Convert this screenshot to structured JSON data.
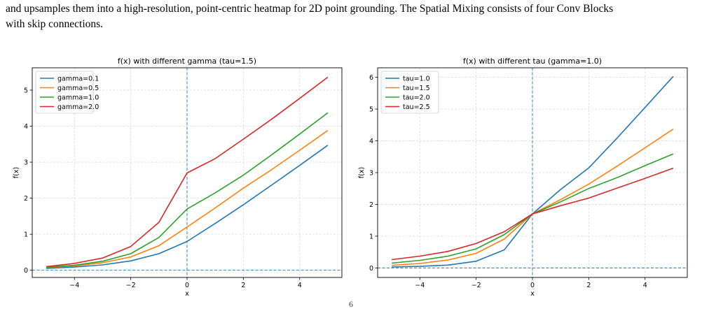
{
  "caption": {
    "line1": "and upsamples them into a high-resolution, point-centric heatmap for 2D point grounding. The Spatial Mixing consists of four Conv Blocks",
    "line2": "with skip connections."
  },
  "chart_data": [
    {
      "type": "line",
      "title": "f(x) with different gamma (tau=1.5)",
      "xlabel": "x",
      "ylabel": "f(x)",
      "xlim": [
        -5.5,
        5.5
      ],
      "ylim": [
        -0.2,
        5.62
      ],
      "xticks": [
        -4,
        -2,
        0,
        2,
        4
      ],
      "yticks": [
        0,
        1,
        2,
        3,
        4,
        5
      ],
      "grid": true,
      "legend": "top-left",
      "x": [
        -5,
        -4,
        -3,
        -2,
        -1,
        0,
        1,
        2,
        3,
        4,
        5
      ],
      "series": [
        {
          "name": "gamma=0.1",
          "color": "#1f77b4",
          "values": [
            0.05,
            0.09,
            0.15,
            0.26,
            0.46,
            0.8,
            1.3,
            1.82,
            2.36,
            2.91,
            3.47
          ]
        },
        {
          "name": "gamma=0.5",
          "color": "#ff7f0e",
          "values": [
            0.07,
            0.12,
            0.21,
            0.37,
            0.68,
            1.2,
            1.73,
            2.28,
            2.79,
            3.33,
            3.88
          ]
        },
        {
          "name": "gamma=1.0",
          "color": "#2ca02c",
          "values": [
            0.08,
            0.14,
            0.25,
            0.46,
            0.91,
            1.7,
            2.15,
            2.64,
            3.2,
            3.78,
            4.37
          ]
        },
        {
          "name": "gamma=2.0",
          "color": "#d62728",
          "values": [
            0.1,
            0.19,
            0.34,
            0.66,
            1.33,
            2.7,
            3.1,
            3.64,
            4.19,
            4.77,
            5.36
          ]
        }
      ],
      "reference_lines": {
        "x": 0,
        "y": 0,
        "color": "#1f77b4"
      }
    },
    {
      "type": "line",
      "title": "f(x) with different tau (gamma=1.0)",
      "xlabel": "x",
      "ylabel": "f(x)",
      "xlim": [
        -5.5,
        5.5
      ],
      "ylim": [
        -0.3,
        6.3
      ],
      "xticks": [
        -4,
        -2,
        0,
        2,
        4
      ],
      "yticks": [
        0,
        1,
        2,
        3,
        4,
        5,
        6
      ],
      "grid": true,
      "legend": "top-left",
      "x": [
        -5,
        -4,
        -3,
        -2,
        -1,
        0,
        1,
        2,
        3,
        4,
        5
      ],
      "series": [
        {
          "name": "tau=1.0",
          "color": "#1f77b4",
          "values": [
            0.03,
            0.05,
            0.09,
            0.21,
            0.57,
            1.7,
            2.47,
            3.15,
            4.08,
            5.05,
            6.03
          ]
        },
        {
          "name": "tau=1.5",
          "color": "#ff7f0e",
          "values": [
            0.08,
            0.14,
            0.25,
            0.46,
            0.91,
            1.7,
            2.15,
            2.64,
            3.2,
            3.78,
            4.37
          ]
        },
        {
          "name": "tau=2.0",
          "color": "#2ca02c",
          "values": [
            0.15,
            0.24,
            0.37,
            0.6,
            1.05,
            1.7,
            2.08,
            2.5,
            2.84,
            3.22,
            3.59
          ]
        },
        {
          "name": "tau=2.5",
          "color": "#d62728",
          "values": [
            0.26,
            0.37,
            0.52,
            0.77,
            1.14,
            1.7,
            1.96,
            2.2,
            2.51,
            2.82,
            3.14
          ]
        }
      ],
      "reference_lines": {
        "x": 0,
        "y": 0,
        "color": "#1f77b4"
      }
    }
  ],
  "page_number": "6"
}
